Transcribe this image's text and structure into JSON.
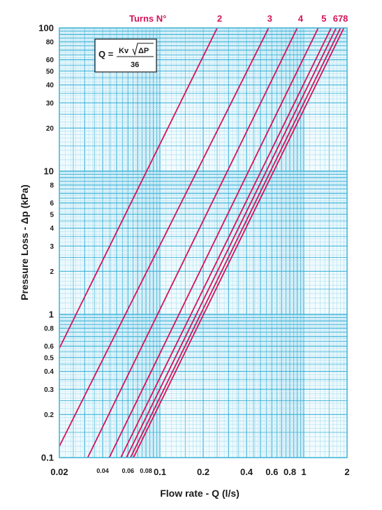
{
  "chart_data": {
    "type": "line",
    "xscale": "log",
    "yscale": "log",
    "xlim": [
      0.02,
      2
    ],
    "ylim": [
      0.1,
      100
    ],
    "xlabel_prefix": "Flow rate - ",
    "xlabel_bold": "Q",
    "xlabel_suffix": " (l/s)",
    "ylabel_prefix": "Pressure Loss  - ",
    "ylabel_bold": "Δp",
    "ylabel_suffix": " (kPa)",
    "turns_label": "Turns N°",
    "formula": {
      "lhs": "Q =",
      "kv": "Kv",
      "dp": "ΔP",
      "den": "36"
    },
    "x_major_ticks": [
      {
        "v": 0.02,
        "l": "0.02",
        "s": 13
      },
      {
        "v": 0.04,
        "l": "0.04",
        "s": 9
      },
      {
        "v": 0.06,
        "l": "0.06",
        "s": 9
      },
      {
        "v": 0.08,
        "l": "0.08",
        "s": 9
      },
      {
        "v": 0.1,
        "l": "0.1",
        "s": 13
      },
      {
        "v": 0.2,
        "l": "0.2",
        "s": 13
      },
      {
        "v": 0.4,
        "l": "0.4",
        "s": 13
      },
      {
        "v": 0.6,
        "l": "0.6",
        "s": 13
      },
      {
        "v": 0.8,
        "l": "0.8",
        "s": 13
      },
      {
        "v": 1,
        "l": "1",
        "s": 13
      },
      {
        "v": 2,
        "l": "2",
        "s": 13
      }
    ],
    "y_major_ticks": [
      {
        "v": 100,
        "l": "100",
        "s": 13
      },
      {
        "v": 80,
        "l": "80",
        "s": 10
      },
      {
        "v": 60,
        "l": "60",
        "s": 10
      },
      {
        "v": 50,
        "l": "50",
        "s": 10
      },
      {
        "v": 40,
        "l": "40",
        "s": 10
      },
      {
        "v": 30,
        "l": "30",
        "s": 10
      },
      {
        "v": 20,
        "l": "20",
        "s": 10
      },
      {
        "v": 10,
        "l": "10",
        "s": 13
      },
      {
        "v": 8,
        "l": "8",
        "s": 10
      },
      {
        "v": 6,
        "l": "6",
        "s": 10
      },
      {
        "v": 5,
        "l": "5",
        "s": 10
      },
      {
        "v": 4,
        "l": "4",
        "s": 10
      },
      {
        "v": 3,
        "l": "3",
        "s": 10
      },
      {
        "v": 2,
        "l": "2",
        "s": 10
      },
      {
        "v": 1,
        "l": "1",
        "s": 13
      },
      {
        "v": 0.8,
        "l": "0.8",
        "s": 10
      },
      {
        "v": 0.6,
        "l": "0.6",
        "s": 10
      },
      {
        "v": 0.5,
        "l": "0.5",
        "s": 10
      },
      {
        "v": 0.4,
        "l": "0.4",
        "s": 10
      },
      {
        "v": 0.3,
        "l": "0.3",
        "s": 10
      },
      {
        "v": 0.2,
        "l": "0.2",
        "s": 10
      },
      {
        "v": 0.1,
        "l": "0.1",
        "s": 13
      }
    ],
    "turn_labels": [
      {
        "t": "2",
        "x": 0.26
      },
      {
        "t": "3",
        "x": 0.58
      },
      {
        "t": "4",
        "x": 0.95
      },
      {
        "t": "5",
        "x": 1.38
      },
      {
        "t": "678",
        "x": 1.8
      }
    ],
    "series": [
      {
        "x": [
          0.02,
          0.25
        ],
        "y": [
          0.58,
          100
        ]
      },
      {
        "x": [
          0.02,
          0.57
        ],
        "y": [
          0.12,
          100
        ]
      },
      {
        "x": [
          0.0315,
          0.9
        ],
        "y": [
          0.1,
          100
        ]
      },
      {
        "x": [
          0.0445,
          1.26
        ],
        "y": [
          0.1,
          100
        ]
      },
      {
        "x": [
          0.0535,
          1.55
        ],
        "y": [
          0.1,
          100
        ]
      },
      {
        "x": [
          0.0585,
          1.68
        ],
        "y": [
          0.1,
          100
        ]
      },
      {
        "x": [
          0.0625,
          1.8
        ],
        "y": [
          0.1,
          100
        ]
      },
      {
        "x": [
          0.0655,
          1.9
        ],
        "y": [
          0.1,
          100
        ]
      }
    ],
    "colors": {
      "grid_major": "#3fb3d8",
      "grid_minor": "#a9ddef",
      "grid_finest": "#d2eef8",
      "line": "#d4145a",
      "plot_bg": "#f2fbfe"
    }
  }
}
